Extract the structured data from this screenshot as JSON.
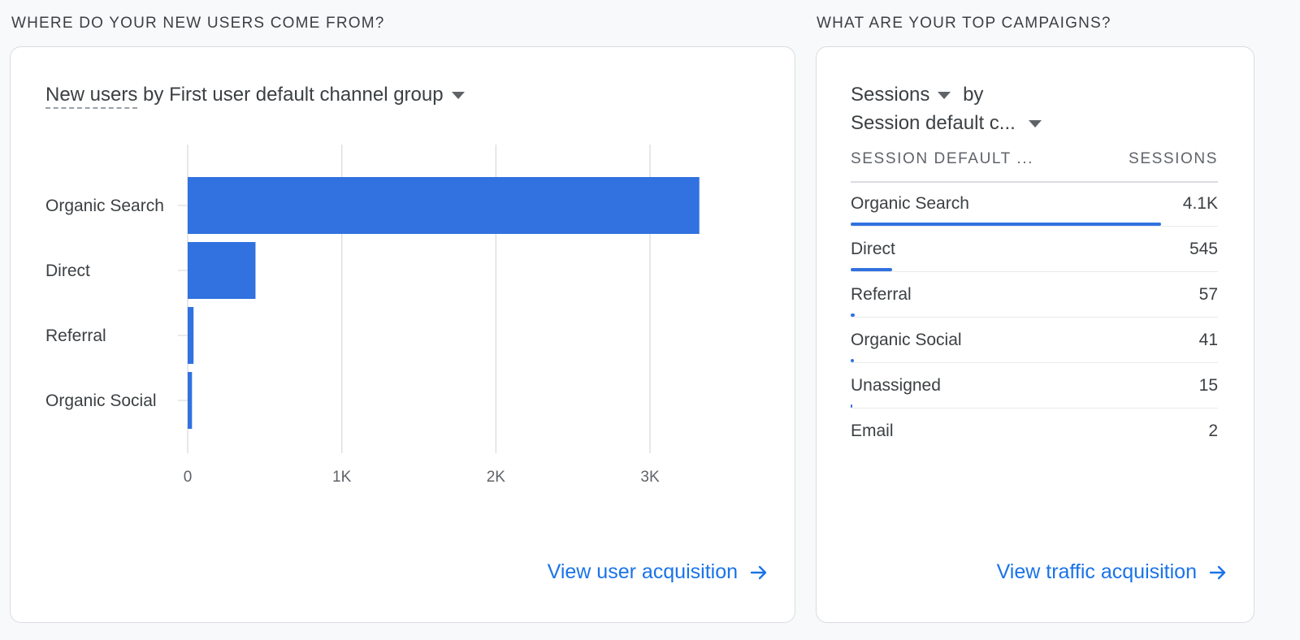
{
  "left_section": {
    "title": "WHERE DO YOUR NEW USERS COME FROM?",
    "selector_metric": "New users",
    "selector_rest": "by First user default channel group",
    "link": "View user acquisition"
  },
  "right_section": {
    "title": "WHAT ARE YOUR TOP CAMPAIGNS?",
    "selector_metric": "Sessions",
    "selector_by": "by",
    "selector_dimension": "Session default c...",
    "table": {
      "col_dimension": "SESSION DEFAULT ...",
      "col_metric": "SESSIONS",
      "rows": [
        {
          "name": "Organic Search",
          "value_label": "4.1K",
          "value": 4100
        },
        {
          "name": "Direct",
          "value_label": "545",
          "value": 545
        },
        {
          "name": "Referral",
          "value_label": "57",
          "value": 57
        },
        {
          "name": "Organic Social",
          "value_label": "41",
          "value": 41
        },
        {
          "name": "Unassigned",
          "value_label": "15",
          "value": 15
        },
        {
          "name": "Email",
          "value_label": "2",
          "value": 2
        }
      ]
    },
    "link": "View traffic acquisition"
  },
  "chart_data": {
    "type": "bar",
    "orientation": "horizontal",
    "categories": [
      "Organic Search",
      "Direct",
      "Referral",
      "Organic Social"
    ],
    "values": [
      3320,
      440,
      38,
      28
    ],
    "xlim": [
      0,
      3600
    ],
    "xticks": [
      0,
      1000,
      2000,
      3000
    ],
    "xtick_labels": [
      "0",
      "1K",
      "2K",
      "3K"
    ],
    "grid": true,
    "bar_color": "#3171e0"
  },
  "colors": {
    "accent": "#1a73e8",
    "bar": "#3171e0"
  }
}
